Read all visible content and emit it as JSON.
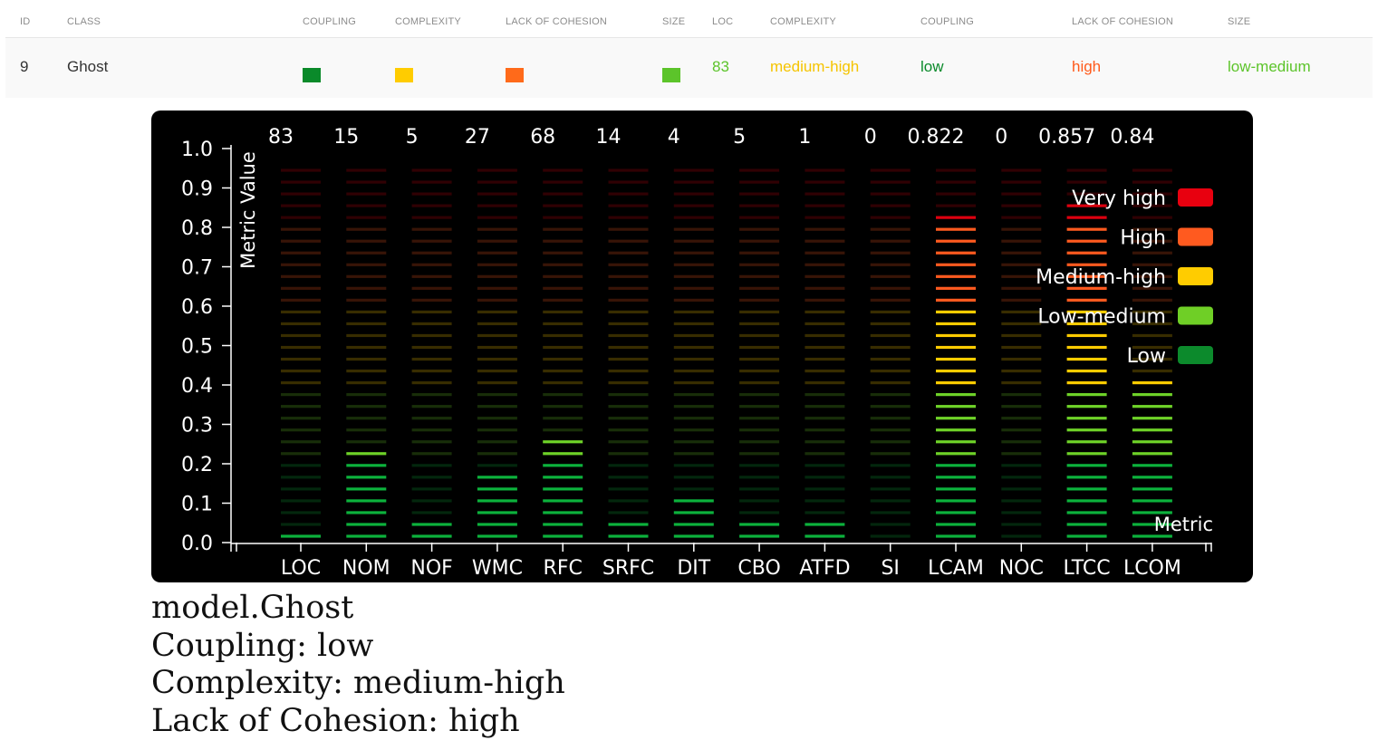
{
  "table": {
    "headers": [
      {
        "key": "id",
        "label": "ID"
      },
      {
        "key": "class",
        "label": "CLASS"
      },
      {
        "key": "coupling_swatch",
        "label": "COUPLING"
      },
      {
        "key": "complexity_swatch",
        "label": "COMPLEXITY"
      },
      {
        "key": "cohesion_swatch",
        "label": "LACK OF COHESION"
      },
      {
        "key": "size_swatch",
        "label": "SIZE"
      },
      {
        "key": "loc",
        "label": "LOC"
      },
      {
        "key": "complexity",
        "label": "COMPLEXITY"
      },
      {
        "key": "coupling",
        "label": "COUPLING"
      },
      {
        "key": "cohesion",
        "label": "LACK OF COHESION"
      },
      {
        "key": "size",
        "label": "SIZE"
      }
    ],
    "row": {
      "id": "9",
      "class": "Ghost",
      "coupling_color": "#0a8a2a",
      "complexity_color": "#ffcc00",
      "cohesion_color": "#ff6a1a",
      "size_color": "#5cc42a",
      "loc": "83",
      "loc_color": "#5cc42a",
      "complexity": "medium-high",
      "complexity_color_text": "#f5c400",
      "coupling": "low",
      "coupling_color_text": "#0a8a2a",
      "cohesion": "high",
      "cohesion_color_text": "#ff5a1a",
      "size": "low-medium",
      "size_color_text": "#5cc42a"
    }
  },
  "chart_data": {
    "type": "bar",
    "ylabel": "Metric Value",
    "xlabel": "Metric",
    "ylim": [
      0,
      1
    ],
    "yticks": [
      "0.0",
      "0.1",
      "0.2",
      "0.3",
      "0.4",
      "0.5",
      "0.6",
      "0.7",
      "0.8",
      "0.9",
      "1.0"
    ],
    "categories": [
      "LOC",
      "NOM",
      "NOF",
      "WMC",
      "RFC",
      "SRFC",
      "DIT",
      "CBO",
      "ATFD",
      "SI",
      "LCAM",
      "NOC",
      "LTCC",
      "LCOM"
    ],
    "raw_values": [
      "83",
      "15",
      "5",
      "27",
      "68",
      "14",
      "4",
      "5",
      "1",
      "0",
      "0.822",
      "0",
      "0.857",
      "0.84"
    ],
    "normalized_values": [
      0.02,
      0.23,
      0.07,
      0.17,
      0.26,
      0.05,
      0.11,
      0.07,
      0.05,
      0.0,
      0.82,
      0.0,
      0.86,
      0.42
    ],
    "legend_position": "top-right",
    "legend": [
      {
        "label": "Very high",
        "color": "#e8000f"
      },
      {
        "label": "High",
        "color": "#ff5a1f"
      },
      {
        "label": "Medium-high",
        "color": "#ffcc00"
      },
      {
        "label": "Low-medium",
        "color": "#6fcf26"
      },
      {
        "label": "Low",
        "color": "#0c8a2c"
      }
    ]
  },
  "summary": {
    "class_name": "model.Ghost",
    "coupling": "Coupling: low",
    "complexity": "Complexity: medium-high",
    "cohesion": "Lack of Cohesion: high"
  }
}
